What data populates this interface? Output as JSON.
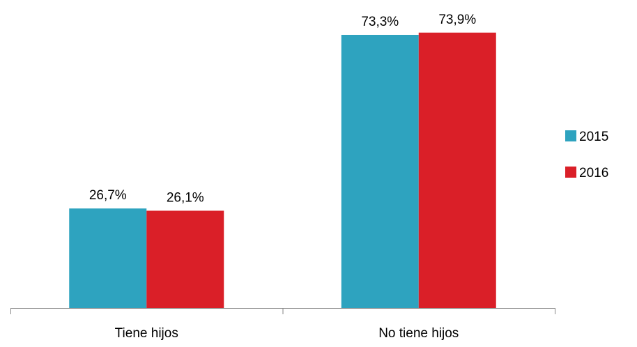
{
  "chart_data": {
    "type": "bar",
    "categories": [
      "Tiene hijos",
      "No tiene hijos"
    ],
    "series": [
      {
        "name": "2015",
        "values": [
          26.7,
          73.3
        ],
        "labels": [
          "26,7%",
          "73,3%"
        ],
        "color": "#2ea3bf"
      },
      {
        "name": "2016",
        "values": [
          26.1,
          73.9
        ],
        "labels": [
          "26,1%",
          "73,9%"
        ],
        "color": "#da1f28"
      }
    ],
    "title": "",
    "xlabel": "",
    "ylabel": "",
    "ylim": [
      0,
      80
    ],
    "grid": false,
    "legend_position": "right"
  }
}
